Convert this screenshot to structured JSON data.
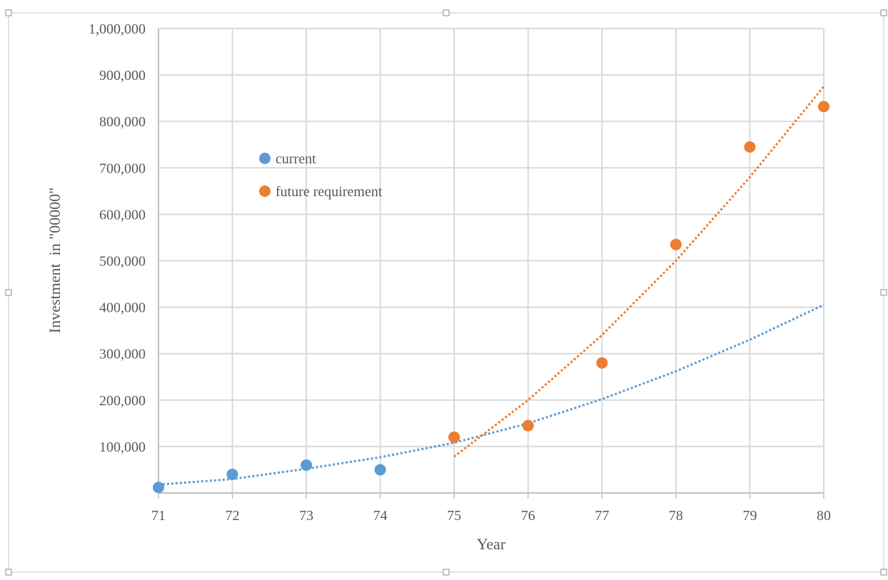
{
  "chart_data": {
    "type": "scatter",
    "title": "",
    "xlabel": "Year",
    "ylabel": "Investment  in \"00000\"",
    "xlim": [
      71,
      80
    ],
    "ylim": [
      0,
      1000000
    ],
    "x_ticks": [
      71,
      72,
      73,
      74,
      75,
      76,
      77,
      78,
      79,
      80
    ],
    "x_tick_labels": [
      "71",
      "72",
      "73",
      "74",
      "75",
      "76",
      "77",
      "78",
      "79",
      "80"
    ],
    "y_ticks": [
      100000,
      200000,
      300000,
      400000,
      500000,
      600000,
      700000,
      800000,
      900000,
      1000000
    ],
    "y_tick_labels": [
      "100,000",
      "200,000",
      "300,000",
      "400,000",
      "500,000",
      "600,000",
      "700,000",
      "800,000",
      "900,000",
      "1,000,000"
    ],
    "grid": true,
    "legend_position": "upper-left inside plot",
    "series": [
      {
        "name": "current",
        "color": "#5b9bd5",
        "points": [
          {
            "x": 71,
            "y": 12000
          },
          {
            "x": 72,
            "y": 40000
          },
          {
            "x": 73,
            "y": 60000
          },
          {
            "x": 74,
            "y": 50000
          },
          {
            "x": 75,
            "y": 120000
          },
          {
            "x": 76,
            "y": 145000
          }
        ],
        "trendline": {
          "style": "dotted",
          "x": [
            71,
            72,
            73,
            74,
            75,
            76,
            77,
            78,
            79,
            80
          ],
          "y": [
            18000,
            30000,
            52000,
            77000,
            108000,
            150000,
            202000,
            262000,
            330000,
            405000
          ]
        }
      },
      {
        "name": "future requirement",
        "color": "#ed7d31",
        "points": [
          {
            "x": 75,
            "y": 120000
          },
          {
            "x": 76,
            "y": 145000
          },
          {
            "x": 77,
            "y": 280000
          },
          {
            "x": 78,
            "y": 535000
          },
          {
            "x": 79,
            "y": 745000
          },
          {
            "x": 80,
            "y": 832000
          }
        ],
        "trendline": {
          "style": "dotted",
          "x": [
            75,
            76,
            77,
            78,
            79,
            80
          ],
          "y": [
            78000,
            200000,
            340000,
            500000,
            680000,
            875000
          ]
        }
      }
    ]
  }
}
